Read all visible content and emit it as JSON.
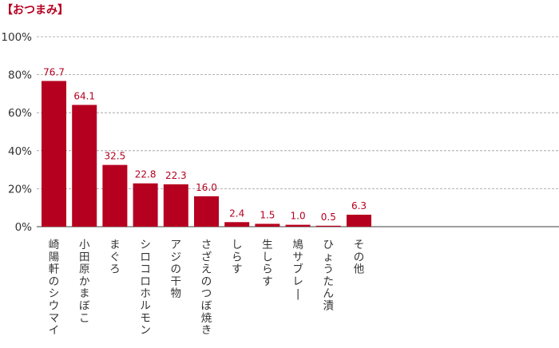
{
  "title": "【おつまみ】",
  "chart_data": {
    "type": "bar",
    "title": "【おつまみ】",
    "categories": [
      "崎陽軒のシウマイ",
      "小田原かまぼこ",
      "まぐろ",
      "シロコロホルモン",
      "アジの干物",
      "さざえのつぼ焼き",
      "しらす",
      "生しらす",
      "鳩サブレー",
      "ひょうたん漬",
      "その他"
    ],
    "values": [
      76.7,
      64.1,
      32.5,
      22.8,
      22.3,
      16.0,
      2.4,
      1.5,
      1.0,
      0.5,
      6.3
    ],
    "data_labels": [
      "76.7",
      "64.1",
      "32.5",
      "22.8",
      "22.3",
      "16.0",
      "2.4",
      "1.5",
      "1.0",
      "0.5",
      "6.3"
    ],
    "y_ticks": [
      "0%",
      "20%",
      "40%",
      "60%",
      "80%",
      "100%"
    ],
    "ylim": [
      0,
      100
    ],
    "xlabel": "",
    "ylabel": "",
    "grid": true,
    "bar_color": "#b5001f",
    "label_color": "#b5001f"
  }
}
